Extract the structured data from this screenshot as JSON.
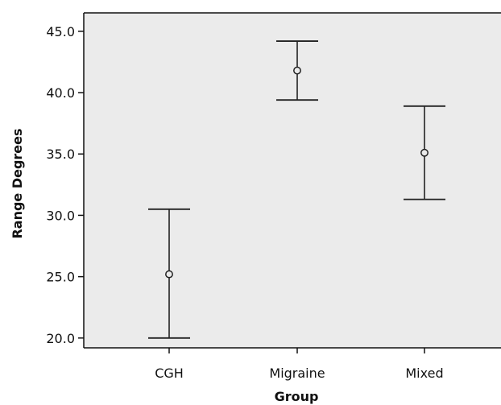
{
  "chart_data": {
    "type": "errorbar",
    "title": "",
    "xlabel": "Group",
    "ylabel": "Range Degrees",
    "categories": [
      "CGH",
      "Migraine",
      "Mixed"
    ],
    "series": [
      {
        "mean": [
          25.2,
          41.8,
          35.1
        ],
        "lower": [
          20.0,
          39.4,
          31.3
        ],
        "upper": [
          30.5,
          44.2,
          38.9
        ]
      }
    ],
    "ylim": [
      19.2,
      46.5
    ],
    "yticks": [
      20.0,
      25.0,
      30.0,
      35.0,
      40.0,
      45.0
    ],
    "ytick_labels": [
      "20.0",
      "25.0",
      "30.0",
      "35.0",
      "40.0",
      "45.0"
    ],
    "grid": false,
    "colors": {
      "plot_background": "#ebebeb",
      "marks": "#222222"
    }
  }
}
